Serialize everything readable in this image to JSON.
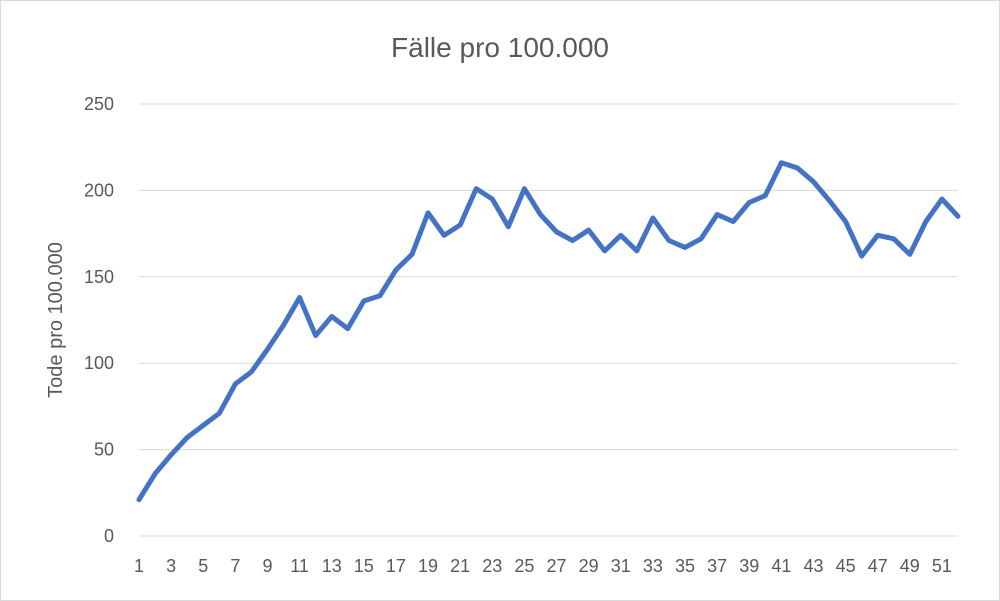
{
  "chart_data": {
    "type": "line",
    "title": "Fälle pro 100.000",
    "xlabel": "",
    "ylabel": "Tode pro 100.000",
    "ylim": [
      0,
      250
    ],
    "yticks": [
      "0",
      "50",
      "100",
      "150",
      "200",
      "250"
    ],
    "x": [
      1,
      2,
      3,
      4,
      5,
      6,
      7,
      8,
      9,
      10,
      11,
      12,
      13,
      14,
      15,
      16,
      17,
      18,
      19,
      20,
      21,
      22,
      23,
      24,
      25,
      26,
      27,
      28,
      29,
      30,
      31,
      32,
      33,
      34,
      35,
      36,
      37,
      38,
      39,
      40,
      41,
      42,
      43,
      44,
      45,
      46,
      47,
      48,
      49,
      50,
      51,
      52
    ],
    "xtick_labels": [
      "1",
      "3",
      "5",
      "7",
      "9",
      "11",
      "13",
      "15",
      "17",
      "19",
      "21",
      "23",
      "25",
      "27",
      "29",
      "31",
      "33",
      "35",
      "37",
      "39",
      "41",
      "43",
      "45",
      "47",
      "49",
      "51"
    ],
    "series": [
      {
        "color": "#4472c4",
        "values": [
          21,
          36,
          47,
          57,
          64,
          71,
          88,
          95,
          108,
          122,
          138,
          116,
          127,
          120,
          136,
          139,
          154,
          163,
          187,
          174,
          180,
          201,
          195,
          179,
          201,
          186,
          176,
          171,
          177,
          165,
          174,
          165,
          184,
          171,
          167,
          172,
          186,
          182,
          193,
          197,
          216,
          213,
          205,
          194,
          182,
          162,
          174,
          172,
          163,
          182,
          195,
          185
        ]
      }
    ],
    "grid": true,
    "legend": "none"
  }
}
